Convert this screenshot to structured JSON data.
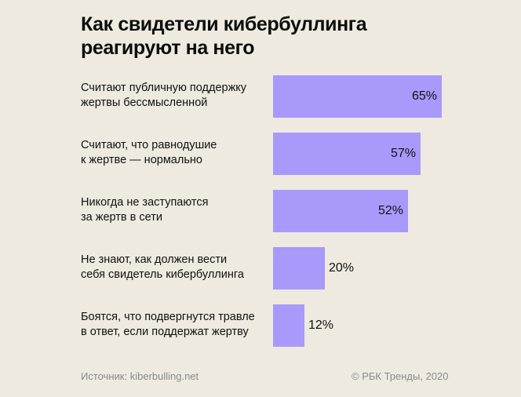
{
  "chart_data": {
    "type": "bar",
    "orientation": "horizontal",
    "title_lines": [
      "Как свидетели кибербуллинга",
      "реагируют на него"
    ],
    "categories": [
      [
        "Считают публичную поддержку",
        "жертвы бессмысленной"
      ],
      [
        "Считают, что равнодушие",
        "к жертве — нормально"
      ],
      [
        "Никогда не заступаются",
        "за жертв в сети"
      ],
      [
        "Не знают, как должен вести",
        "себя свидетель кибербуллинга"
      ],
      [
        "Боятся, что подвергнутся травле",
        "в ответ, если поддержат жертву"
      ]
    ],
    "values": [
      65,
      57,
      52,
      20,
      12
    ],
    "value_labels": [
      "65%",
      "57%",
      "52%",
      "20%",
      "12%"
    ],
    "unit": "%",
    "xlim": [
      0,
      100
    ],
    "bar_color": "#a899fb",
    "grid": false,
    "legend": "none"
  },
  "footer": {
    "source": "Источник: kiberbulling.net",
    "copyright": "© РБК Тренды, 2020"
  },
  "colors": {
    "background": "#eeeadf",
    "text": "#111111",
    "muted": "#8a8a8a"
  }
}
